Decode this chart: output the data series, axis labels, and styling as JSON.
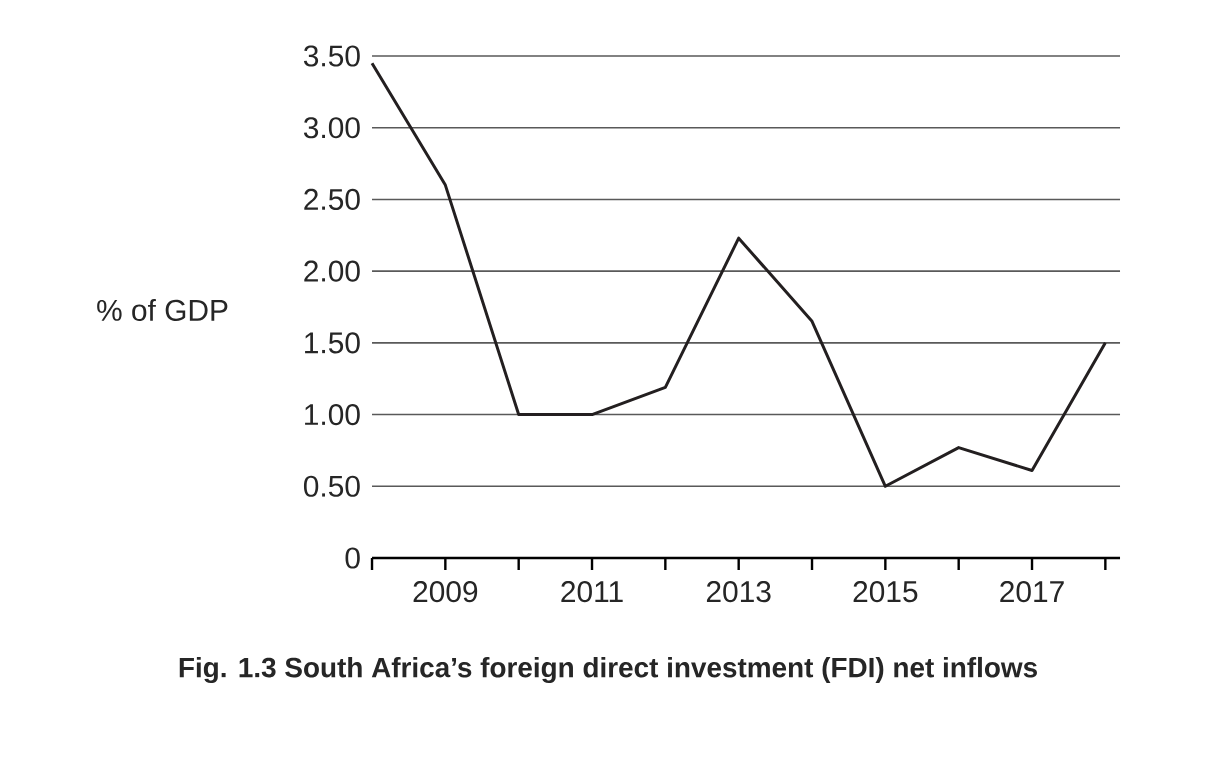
{
  "chart_data": {
    "type": "line",
    "title": "Fig. 1.3 South Africa’s foreign direct investment (FDI) net inflows",
    "ylabel": "% of GDP",
    "x": [
      2008,
      2009,
      2010,
      2011,
      2012,
      2013,
      2014,
      2015,
      2016,
      2017,
      2018
    ],
    "series": [
      {
        "color": "#231f20",
        "values": [
          3.45,
          2.6,
          1.0,
          1.0,
          1.19,
          2.23,
          1.65,
          0.5,
          0.77,
          0.61,
          1.5
        ]
      }
    ],
    "xlim": [
      2008,
      2018.2
    ],
    "xticks": [
      {
        "value": 2008,
        "label": null
      },
      2009,
      {
        "value": 2010,
        "label": null
      },
      2011,
      {
        "value": 2012,
        "label": null
      },
      2013,
      {
        "value": 2014,
        "label": null
      },
      2015,
      {
        "value": 2016,
        "label": null
      },
      2017,
      {
        "value": 2018,
        "label": null
      }
    ],
    "ylim": [
      0,
      3.5
    ],
    "yticks": [
      0,
      {
        "value": 0.5,
        "label": "0.50"
      },
      {
        "value": 1,
        "label": "1.00"
      },
      {
        "value": 1.5,
        "label": "1.50"
      },
      {
        "value": 2,
        "label": "2.00"
      },
      {
        "value": 2.5,
        "label": "2.50"
      },
      {
        "value": 3,
        "label": "3.00"
      },
      {
        "value": 3.5,
        "label": "3.50"
      }
    ],
    "grid": "y",
    "marker": "none",
    "line_style": "solid"
  }
}
